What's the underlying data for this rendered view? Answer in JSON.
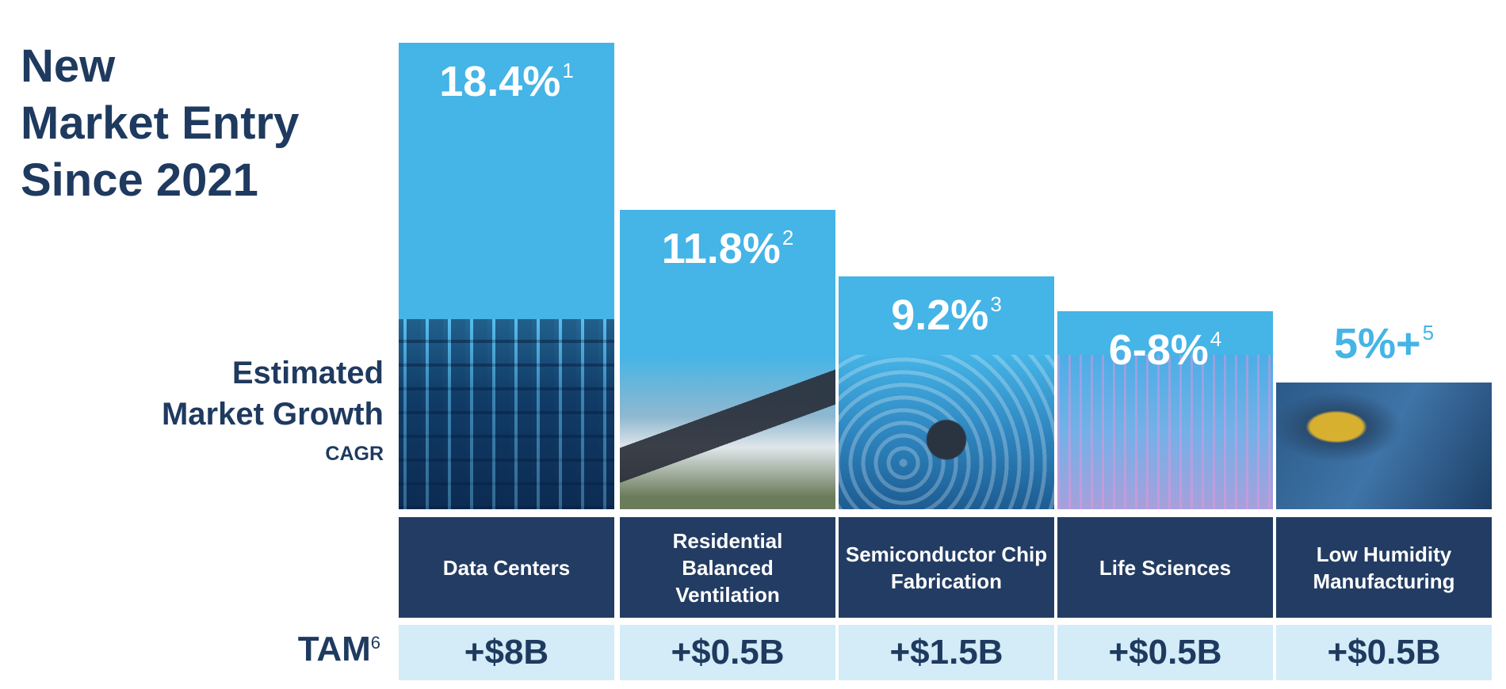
{
  "title": [
    "New",
    "Market Entry",
    "Since 2021"
  ],
  "growth_label": {
    "line1": "Estimated",
    "line2": "Market Growth",
    "line3": "CAGR"
  },
  "tam_label": {
    "text": "TAM",
    "footnote": "6"
  },
  "colors": {
    "bar": "#45b4e6",
    "category_bg": "#233c63",
    "tam_bg": "#d3ecf8",
    "text_navy": "#1f3a5f"
  },
  "chart_data": {
    "type": "bar",
    "ylabel": "Estimated Market Growth CAGR",
    "categories": [
      "Data Centers",
      "Residential Balanced Ventilation",
      "Semiconductor Chip Fabrication",
      "Life Sciences",
      "Low Humidity Manufacturing"
    ],
    "values": [
      18.4,
      11.8,
      9.2,
      7.8,
      5
    ],
    "value_labels": [
      "18.4%",
      "11.8%",
      "9.2%",
      "6-8%",
      "5%+"
    ],
    "footnotes": [
      "1",
      "2",
      "3",
      "4",
      "5"
    ],
    "tam": [
      "+$8B",
      "+$0.5B",
      "+$1.5B",
      "+$0.5B",
      "+$0.5B"
    ],
    "images": [
      "server-racks-image",
      "house-image",
      "microchip-image",
      "test-tubes-image",
      "ev-charger-image"
    ]
  }
}
